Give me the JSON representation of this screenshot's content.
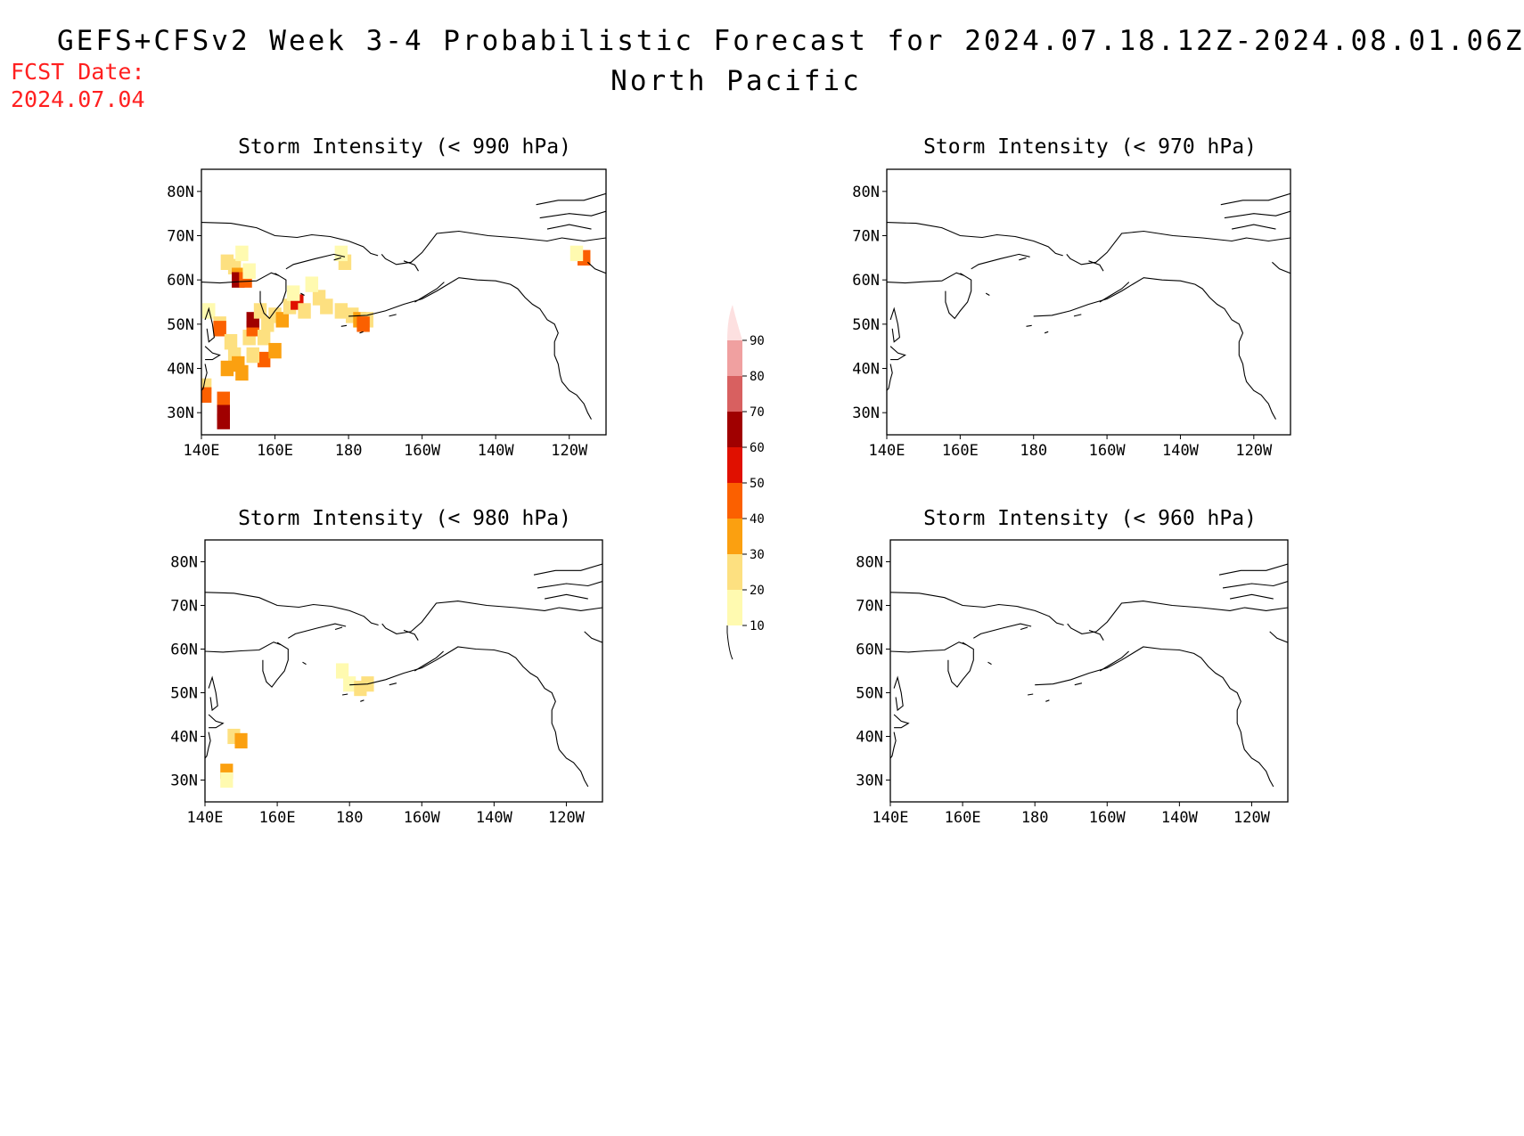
{
  "header": {
    "title": "GEFS+CFSv2 Week 3-4 Probabilistic Forecast for 2024.07.18.12Z-2024.08.01.06Z",
    "subtitle": "North Pacific",
    "fcst_label": "FCST Date:",
    "fcst_date": "2024.07.04"
  },
  "colors": {
    "fcst_text": "#ff2020",
    "coast": "#000000"
  },
  "axes": {
    "lat_ticks": [
      {
        "lat": 80,
        "label": "80N"
      },
      {
        "lat": 70,
        "label": "70N"
      },
      {
        "lat": 60,
        "label": "60N"
      },
      {
        "lat": 50,
        "label": "50N"
      },
      {
        "lat": 40,
        "label": "40N"
      },
      {
        "lat": 30,
        "label": "30N"
      }
    ],
    "lon_ticks": [
      {
        "lon": 140,
        "label": "140E"
      },
      {
        "lon": 160,
        "label": "160E"
      },
      {
        "lon": 180,
        "label": "180"
      },
      {
        "lon": 200,
        "label": "160W"
      },
      {
        "lon": 220,
        "label": "140W"
      },
      {
        "lon": 240,
        "label": "120W"
      }
    ],
    "lon_range": [
      140,
      250
    ],
    "lat_range": [
      25,
      85
    ]
  },
  "colorbar": {
    "levels": [
      {
        "label": "10",
        "color": "#fffab0"
      },
      {
        "label": "20",
        "color": "#fde080"
      },
      {
        "label": "30",
        "color": "#fba010"
      },
      {
        "label": "40",
        "color": "#fb6000"
      },
      {
        "label": "50",
        "color": "#e01000"
      },
      {
        "label": "60",
        "color": "#a00000"
      },
      {
        "label": "70",
        "color": "#d86060"
      },
      {
        "label": "80",
        "color": "#f0a0a0"
      },
      {
        "label": "90",
        "color": "#fde0e0"
      }
    ]
  },
  "panels": [
    {
      "title": "Storm Intensity (< 990 hPa)",
      "cells": [
        {
          "lon": 147,
          "lat": 64,
          "v": 20
        },
        {
          "lon": 149,
          "lat": 63,
          "v": 20
        },
        {
          "lon": 150,
          "lat": 61,
          "v": 30
        },
        {
          "lon": 150,
          "lat": 60,
          "v": 60
        },
        {
          "lon": 152,
          "lat": 60,
          "v": 40
        },
        {
          "lon": 153,
          "lat": 62,
          "v": 10
        },
        {
          "lon": 151,
          "lat": 66,
          "v": 10
        },
        {
          "lon": 142,
          "lat": 53,
          "v": 10
        },
        {
          "lon": 145,
          "lat": 50,
          "v": 20
        },
        {
          "lon": 145,
          "lat": 49,
          "v": 40
        },
        {
          "lon": 148,
          "lat": 46,
          "v": 20
        },
        {
          "lon": 153,
          "lat": 47,
          "v": 20
        },
        {
          "lon": 154,
          "lat": 49,
          "v": 40
        },
        {
          "lon": 154,
          "lat": 51,
          "v": 60
        },
        {
          "lon": 157,
          "lat": 47,
          "v": 20
        },
        {
          "lon": 158,
          "lat": 50,
          "v": 20
        },
        {
          "lon": 156,
          "lat": 53,
          "v": 20
        },
        {
          "lon": 160,
          "lat": 52,
          "v": 20
        },
        {
          "lon": 162,
          "lat": 51,
          "v": 30
        },
        {
          "lon": 164,
          "lat": 54,
          "v": 20
        },
        {
          "lon": 166,
          "lat": 55,
          "v": 50
        },
        {
          "lon": 168,
          "lat": 53,
          "v": 20
        },
        {
          "lon": 165,
          "lat": 57,
          "v": 10
        },
        {
          "lon": 172,
          "lat": 56,
          "v": 20
        },
        {
          "lon": 174,
          "lat": 54,
          "v": 20
        },
        {
          "lon": 178,
          "lat": 53,
          "v": 20
        },
        {
          "lon": 181,
          "lat": 52,
          "v": 20
        },
        {
          "lon": 183,
          "lat": 51,
          "v": 30
        },
        {
          "lon": 185,
          "lat": 51,
          "v": 20
        },
        {
          "lon": 184,
          "lat": 50,
          "v": 40
        },
        {
          "lon": 179,
          "lat": 64,
          "v": 20
        },
        {
          "lon": 178,
          "lat": 66,
          "v": 10
        },
        {
          "lon": 170,
          "lat": 59,
          "v": 10
        },
        {
          "lon": 149,
          "lat": 43,
          "v": 20
        },
        {
          "lon": 150,
          "lat": 41,
          "v": 30
        },
        {
          "lon": 147,
          "lat": 40,
          "v": 30
        },
        {
          "lon": 151,
          "lat": 39,
          "v": 30
        },
        {
          "lon": 157,
          "lat": 42,
          "v": 40
        },
        {
          "lon": 160,
          "lat": 44,
          "v": 30
        },
        {
          "lon": 154,
          "lat": 43,
          "v": 20
        },
        {
          "lon": 146,
          "lat": 33,
          "v": 40
        },
        {
          "lon": 146,
          "lat": 30,
          "v": 60
        },
        {
          "lon": 146,
          "lat": 28,
          "v": 60
        },
        {
          "lon": 141,
          "lat": 36,
          "v": 20
        },
        {
          "lon": 141,
          "lat": 34,
          "v": 40
        },
        {
          "lon": 244,
          "lat": 65,
          "v": 40
        },
        {
          "lon": 242,
          "lat": 66,
          "v": 10
        }
      ]
    },
    {
      "title": "Storm Intensity (< 970 hPa)",
      "cells": []
    },
    {
      "title": "Storm Intensity (< 980 hPa)",
      "cells": [
        {
          "lon": 180,
          "lat": 52,
          "v": 10
        },
        {
          "lon": 183,
          "lat": 51,
          "v": 20
        },
        {
          "lon": 185,
          "lat": 52,
          "v": 20
        },
        {
          "lon": 178,
          "lat": 55,
          "v": 10
        },
        {
          "lon": 148,
          "lat": 40,
          "v": 20
        },
        {
          "lon": 150,
          "lat": 39,
          "v": 30
        },
        {
          "lon": 146,
          "lat": 32,
          "v": 30
        },
        {
          "lon": 146,
          "lat": 30,
          "v": 10
        }
      ]
    },
    {
      "title": "Storm Intensity (< 960 hPa)",
      "cells": []
    }
  ]
}
